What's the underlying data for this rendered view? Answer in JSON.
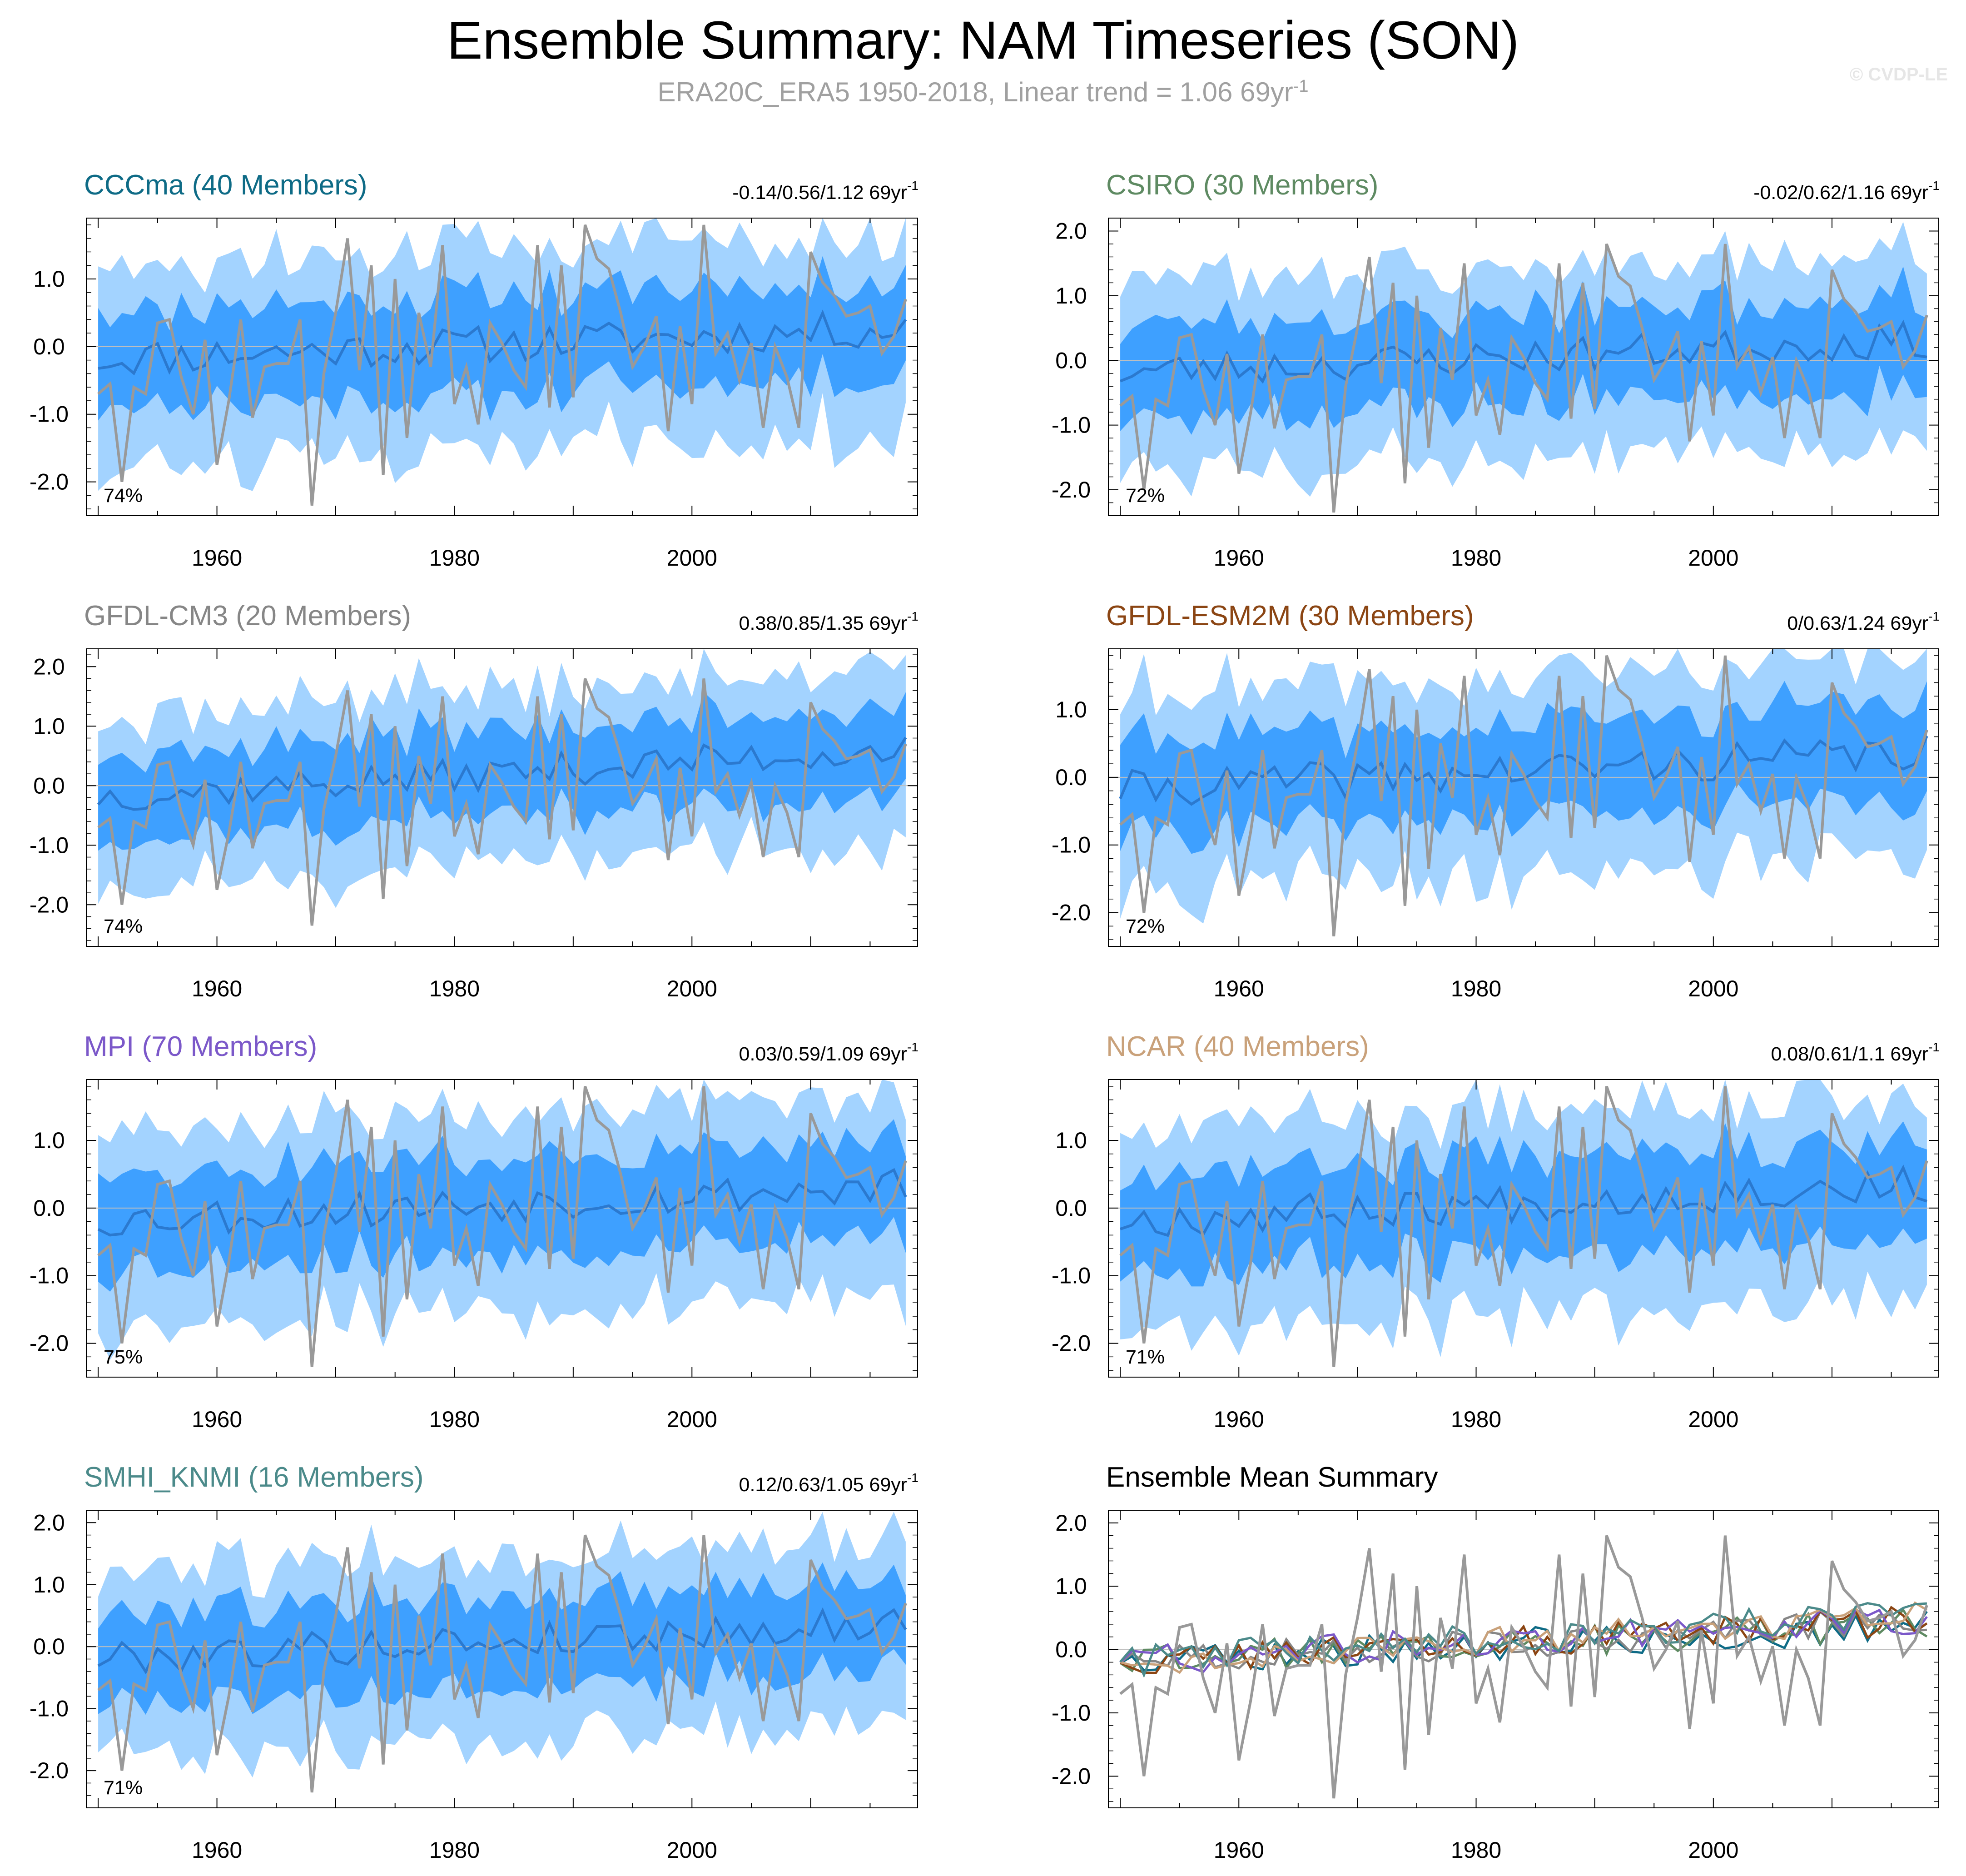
{
  "title": "Ensemble Summary: NAM Timeseries (SON)",
  "subtitle": {
    "text": "ERA20C_ERA5 1950-2018, Linear trend = 1.06 69yr",
    "superscript": "-1"
  },
  "watermark": "© CVDP-LE",
  "colors": {
    "outer_band": "#a3d3ff",
    "inner_band": "#3ea0ff",
    "ensemble_mean": "#2b79cf",
    "observations": "#999999",
    "zero_line": "#bfbfbf"
  },
  "chart_data": [
    {
      "type": "area",
      "title": "CCCma (40 Members)",
      "title_color": "#0e6b86",
      "trend_label": "-0.14/0.56/1.12 69yr",
      "trend_sup": "-1",
      "percent_label": "74%",
      "x_range": [
        1949,
        2019
      ],
      "ylim": [
        -2.5,
        1.9
      ],
      "yticks": [
        "1.0",
        "0.0",
        "-1.0",
        "-2.0"
      ],
      "ytick_values": [
        1.0,
        0.0,
        -1.0,
        -2.0
      ],
      "xticks": [
        "1960",
        "1980",
        "2000"
      ],
      "xtick_values": [
        1960,
        1980,
        2000
      ],
      "trend_offset": 0.0,
      "seed": 11
    },
    {
      "type": "area",
      "title": "CSIRO (30 Members)",
      "title_color": "#5e8a62",
      "trend_label": "-0.02/0.62/1.16 69yr",
      "trend_sup": "-1",
      "percent_label": "72%",
      "x_range": [
        1949,
        2019
      ],
      "ylim": [
        -2.4,
        2.2
      ],
      "yticks": [
        "2.0",
        "1.0",
        "0.0",
        "-1.0",
        "-2.0"
      ],
      "ytick_values": [
        2.0,
        1.0,
        0.0,
        -1.0,
        -2.0
      ],
      "xticks": [
        "1960",
        "1980",
        "2000"
      ],
      "xtick_values": [
        1960,
        1980,
        2000
      ],
      "trend_offset": 0.05,
      "seed": 23
    },
    {
      "type": "area",
      "title": "GFDL-CM3 (20 Members)",
      "title_color": "#868686",
      "trend_label": "0.38/0.85/1.35 69yr",
      "trend_sup": "-1",
      "percent_label": "74%",
      "x_range": [
        1949,
        2019
      ],
      "ylim": [
        -2.7,
        2.3
      ],
      "yticks": [
        "2.0",
        "1.0",
        "0.0",
        "-1.0",
        "-2.0"
      ],
      "ytick_values": [
        2.0,
        1.0,
        0.0,
        -1.0,
        -2.0
      ],
      "xticks": [
        "1960",
        "1980",
        "2000"
      ],
      "xtick_values": [
        1960,
        1980,
        2000
      ],
      "trend_offset": 0.35,
      "seed": 37
    },
    {
      "type": "area",
      "title": "GFDL-ESM2M (30 Members)",
      "title_color": "#8b4513",
      "trend_label": "0/0.63/1.24 69yr",
      "trend_sup": "-1",
      "percent_label": "72%",
      "x_range": [
        1949,
        2019
      ],
      "ylim": [
        -2.5,
        1.9
      ],
      "yticks": [
        "1.0",
        "0.0",
        "-1.0",
        "-2.0"
      ],
      "ytick_values": [
        1.0,
        0.0,
        -1.0,
        -2.0
      ],
      "xticks": [
        "1960",
        "1980",
        "2000"
      ],
      "xtick_values": [
        1960,
        1980,
        2000
      ],
      "trend_offset": 0.1,
      "seed": 41
    },
    {
      "type": "area",
      "title": "MPI (70 Members)",
      "title_color": "#7b58c9",
      "trend_label": "0.03/0.59/1.09 69yr",
      "trend_sup": "-1",
      "percent_label": "75%",
      "x_range": [
        1949,
        2019
      ],
      "ylim": [
        -2.5,
        1.9
      ],
      "yticks": [
        "1.0",
        "0.0",
        "-1.0",
        "-2.0"
      ],
      "ytick_values": [
        1.0,
        0.0,
        -1.0,
        -2.0
      ],
      "xticks": [
        "1960",
        "1980",
        "2000"
      ],
      "xtick_values": [
        1960,
        1980,
        2000
      ],
      "trend_offset": 0.05,
      "seed": 53
    },
    {
      "type": "area",
      "title": "NCAR (40 Members)",
      "title_color": "#c9a17a",
      "trend_label": "0.08/0.61/1.1 69yr",
      "trend_sup": "-1",
      "percent_label": "71%",
      "x_range": [
        1949,
        2019
      ],
      "ylim": [
        -2.5,
        1.9
      ],
      "yticks": [
        "1.0",
        "0.0",
        "-1.0",
        "-2.0"
      ],
      "ytick_values": [
        1.0,
        0.0,
        -1.0,
        -2.0
      ],
      "xticks": [
        "1960",
        "1980",
        "2000"
      ],
      "xtick_values": [
        1960,
        1980,
        2000
      ],
      "trend_offset": 0.08,
      "seed": 67
    },
    {
      "type": "area",
      "title": "SMHI_KNMI (16 Members)",
      "title_color": "#4b8a8a",
      "trend_label": "0.12/0.63/1.05 69yr",
      "trend_sup": "-1",
      "percent_label": "71%",
      "x_range": [
        1949,
        2019
      ],
      "ylim": [
        -2.6,
        2.2
      ],
      "yticks": [
        "2.0",
        "1.0",
        "0.0",
        "-1.0",
        "-2.0"
      ],
      "ytick_values": [
        2.0,
        1.0,
        0.0,
        -1.0,
        -2.0
      ],
      "xticks": [
        "1960",
        "1980",
        "2000"
      ],
      "xtick_values": [
        1960,
        1980,
        2000
      ],
      "trend_offset": 0.1,
      "seed": 79
    },
    {
      "type": "line",
      "title": "Ensemble Mean Summary",
      "title_color": "#000000",
      "x_range": [
        1949,
        2019
      ],
      "ylim": [
        -2.5,
        2.2
      ],
      "yticks": [
        "2.0",
        "1.0",
        "0.0",
        "-1.0",
        "-2.0"
      ],
      "ytick_values": [
        2.0,
        1.0,
        0.0,
        -1.0,
        -2.0
      ],
      "xticks": [
        "1960",
        "1980",
        "2000"
      ],
      "xtick_values": [
        1960,
        1980,
        2000
      ],
      "series_names": [
        "CCCma",
        "CSIRO",
        "GFDL-CM3",
        "GFDL-ESM2M",
        "MPI",
        "NCAR",
        "SMHI_KNMI"
      ],
      "series_colors": [
        "#0e6b86",
        "#5e8a62",
        "#868686",
        "#8b4513",
        "#7b58c9",
        "#c9a17a",
        "#4b8a8a"
      ]
    }
  ],
  "observations": {
    "name": "ERA20C_ERA5",
    "x_start": 1950,
    "values": [
      -0.7,
      -0.55,
      -2.0,
      -0.6,
      -0.7,
      0.35,
      0.4,
      -0.45,
      -1.0,
      0.1,
      -1.75,
      -0.8,
      0.4,
      -1.05,
      -0.3,
      -0.25,
      -0.25,
      0.4,
      -2.35,
      -0.4,
      0.5,
      1.6,
      -0.35,
      1.2,
      -1.9,
      1.0,
      -1.35,
      0.5,
      -0.3,
      1.5,
      -0.85,
      -0.3,
      -1.15,
      0.35,
      0.05,
      -0.35,
      -0.6,
      1.5,
      -0.9,
      1.2,
      -0.75,
      1.8,
      1.3,
      1.15,
      0.5,
      -0.3,
      0.0,
      0.45,
      -1.25,
      0.3,
      -0.85,
      1.8,
      -0.1,
      0.2,
      -0.5,
      0.05,
      -1.2,
      0.0,
      -0.45,
      -1.2,
      1.4,
      0.95,
      0.75,
      0.45,
      0.5,
      0.6,
      -0.1,
      0.15,
      0.7
    ]
  }
}
